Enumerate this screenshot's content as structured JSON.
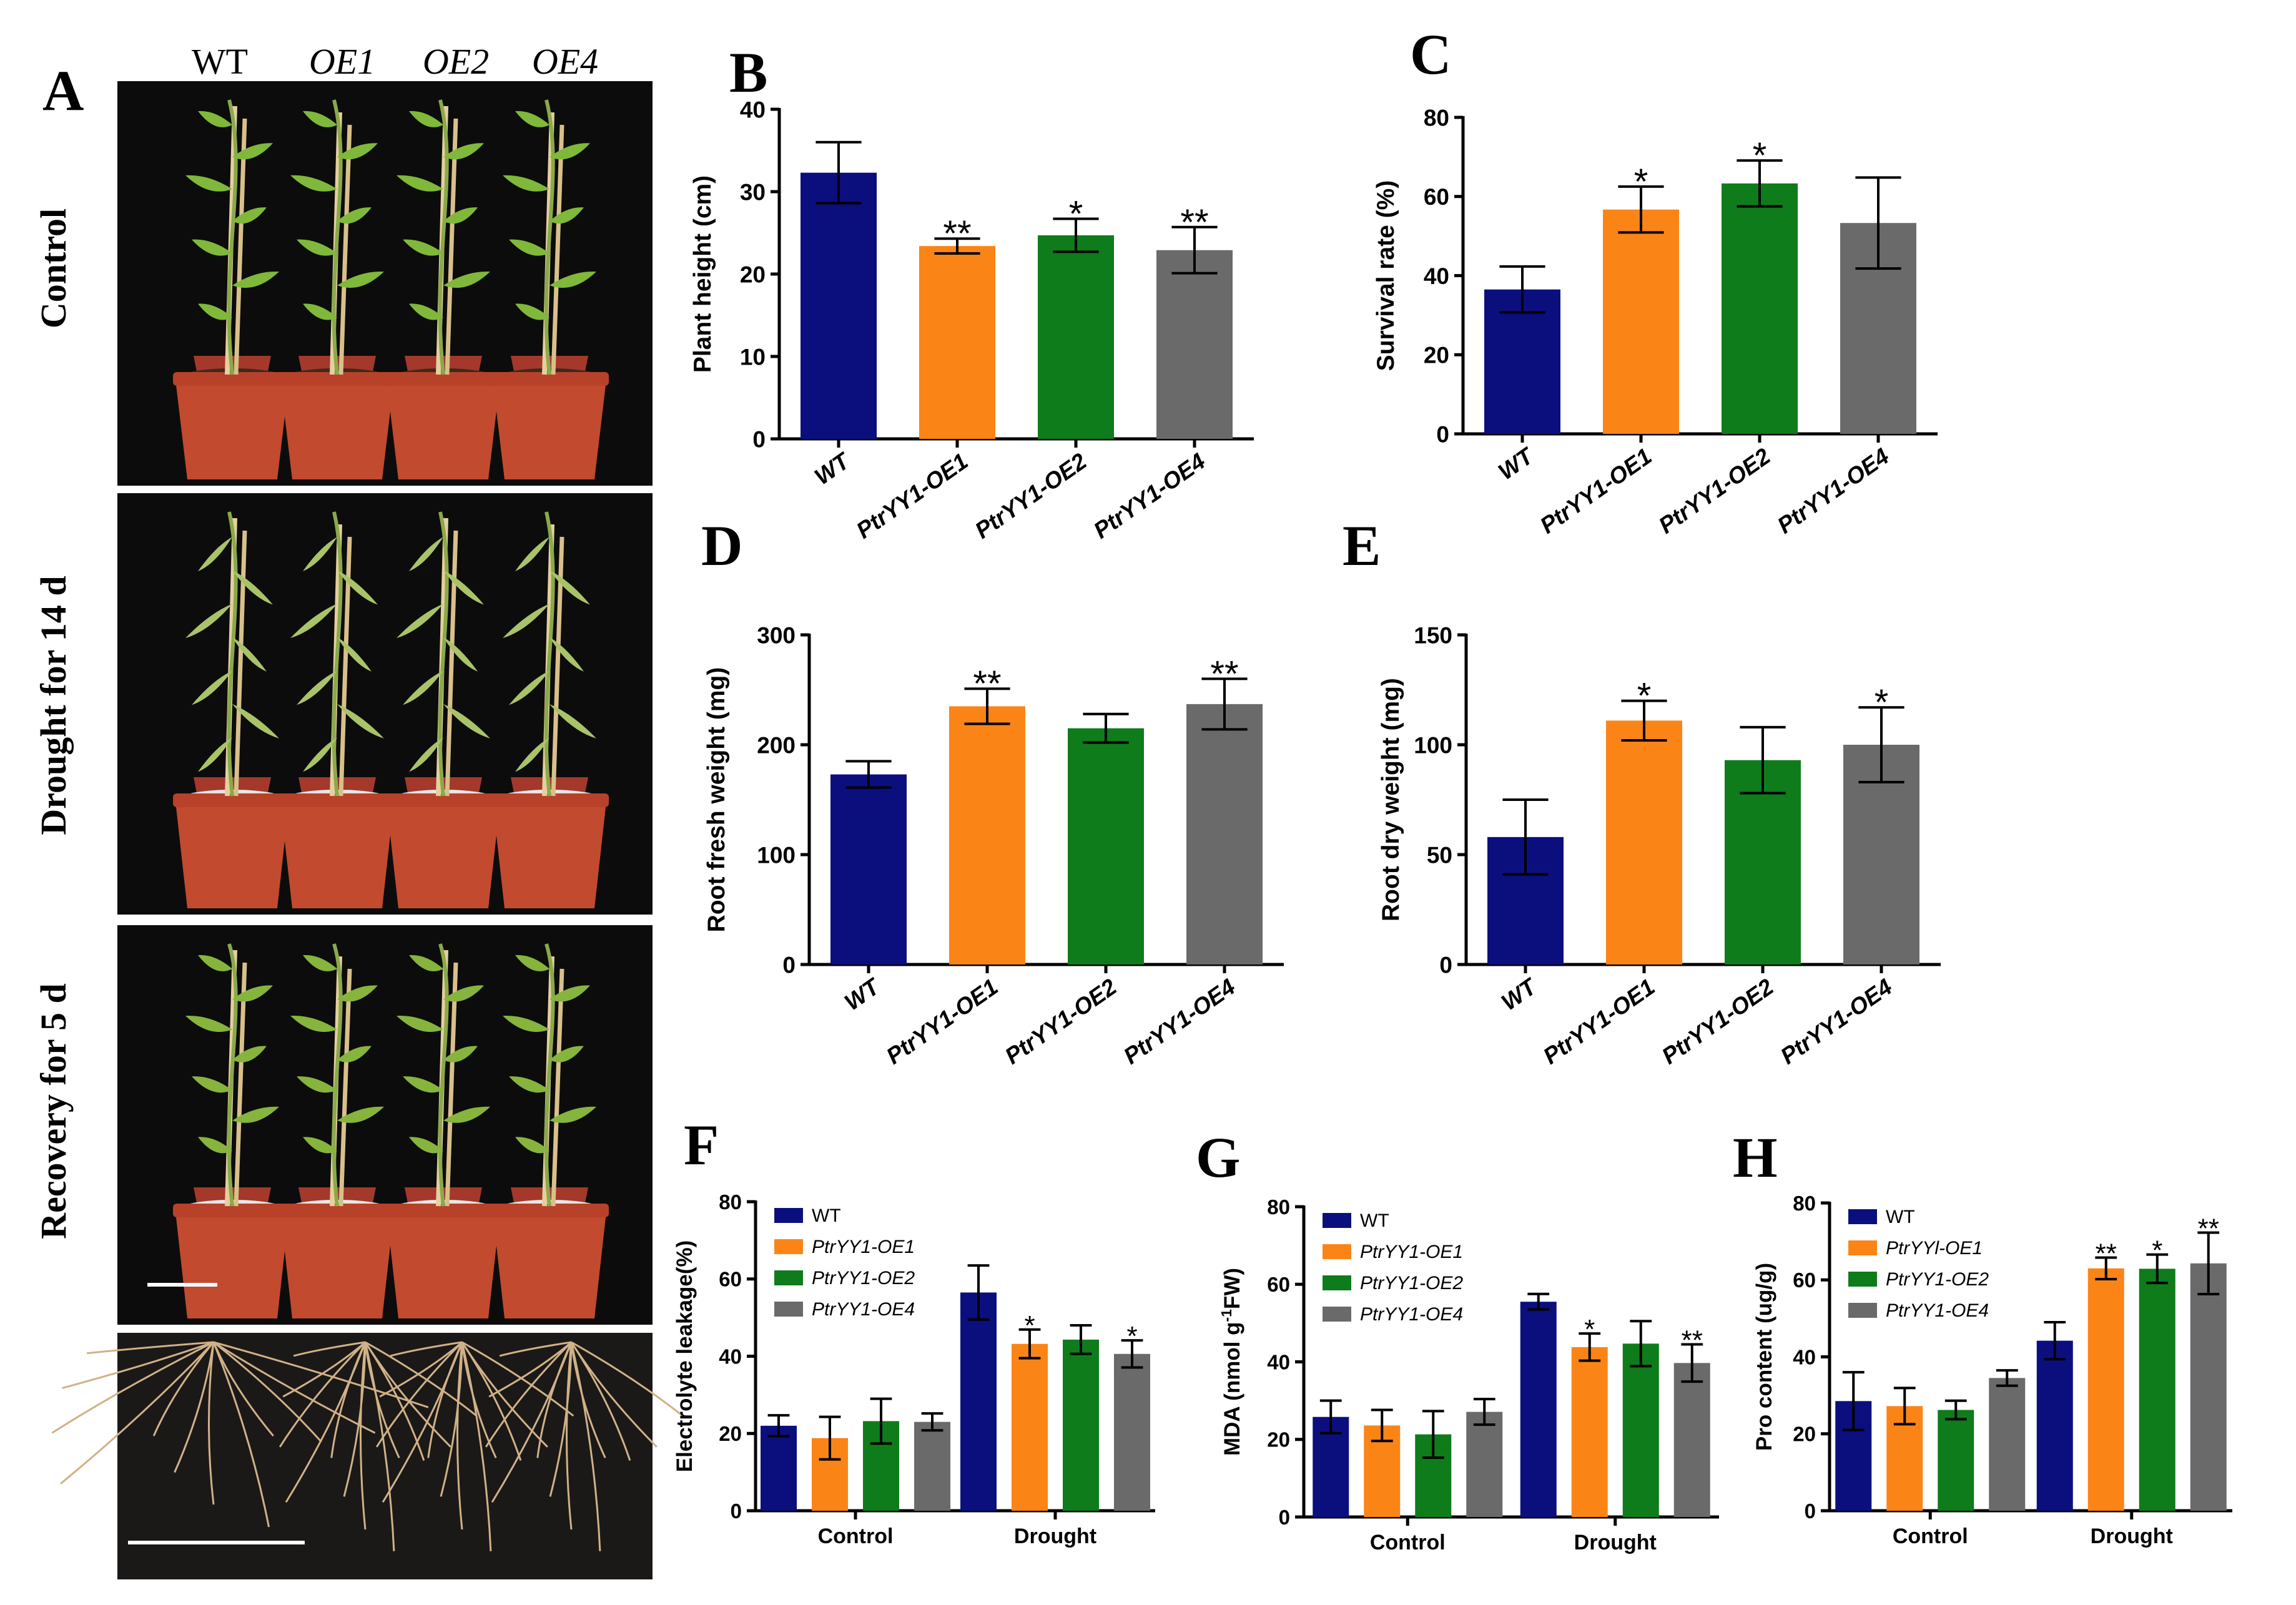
{
  "figure": {
    "panel_labels": [
      "A",
      "B",
      "C",
      "D",
      "E",
      "F",
      "G",
      "H"
    ],
    "photo_columns": [
      "WT",
      "OE1",
      "OE2",
      "OE4"
    ],
    "photo_rows": [
      "Control",
      "Drought for 14 d",
      "Recovery for 5 d"
    ]
  },
  "colors": {
    "WT": "#0b0f7e",
    "OE1": "#fb8417",
    "OE2": "#0e7c1b",
    "OE4": "#6a6a6a"
  },
  "chart_data": [
    {
      "panel": "B",
      "type": "bar",
      "title": "",
      "xlabel": "",
      "ylabel": "Plant height (cm)",
      "categories": [
        "WT",
        "PtrYY1-OE1",
        "PtrYY1-OE2",
        "PtrYY1-OE4"
      ],
      "values": [
        32.3,
        23.4,
        24.7,
        22.9
      ],
      "errors": [
        3.7,
        0.9,
        2.0,
        2.8
      ],
      "annotations": [
        "",
        "**",
        "*",
        "**"
      ],
      "ylim": [
        0,
        40
      ],
      "yticks": [
        0,
        10,
        20,
        30,
        40
      ],
      "grid": false
    },
    {
      "panel": "C",
      "type": "bar",
      "title": "",
      "xlabel": "",
      "ylabel": "Survival rate (%)",
      "categories": [
        "WT",
        "PtrYY1-OE1",
        "PtrYY1-OE2",
        "PtrYY1-OE4"
      ],
      "values": [
        36.5,
        56.7,
        63.3,
        53.3
      ],
      "errors": [
        5.8,
        5.8,
        5.8,
        11.5
      ],
      "annotations": [
        "",
        "*",
        "*",
        ""
      ],
      "ylim": [
        0,
        80
      ],
      "yticks": [
        0,
        20,
        40,
        60,
        80
      ],
      "grid": false
    },
    {
      "panel": "D",
      "type": "bar",
      "title": "",
      "xlabel": "",
      "ylabel": "Root fresh weight (mg)",
      "categories": [
        "WT",
        "PtrYY1-OE1",
        "PtrYY1-OE2",
        "PtrYY1-OE4"
      ],
      "values": [
        173,
        235,
        215,
        237
      ],
      "errors": [
        12,
        16,
        13,
        23
      ],
      "annotations": [
        "",
        "**",
        "",
        "**"
      ],
      "ylim": [
        0,
        300
      ],
      "yticks": [
        0,
        100,
        200,
        300
      ],
      "grid": false
    },
    {
      "panel": "E",
      "type": "bar",
      "title": "",
      "xlabel": "",
      "ylabel": "Root dry weight (mg)",
      "categories": [
        "WT",
        "PtrYY1-OE1",
        "PtrYY1-OE2",
        "PtrYY1-OE4"
      ],
      "values": [
        58,
        111,
        93,
        100
      ],
      "errors": [
        17,
        9,
        15,
        17
      ],
      "annotations": [
        "",
        "*",
        "",
        "*"
      ],
      "ylim": [
        0,
        150
      ],
      "yticks": [
        0,
        50,
        100,
        150
      ],
      "grid": false
    },
    {
      "panel": "F",
      "type": "bar",
      "title": "",
      "xlabel": "",
      "ylabel": "Electrolyte leakage(%)",
      "categories": [
        "Control",
        "Drought"
      ],
      "series": [
        {
          "name": "WT",
          "values": [
            22,
            56.5
          ],
          "errors": [
            2.7,
            7
          ]
        },
        {
          "name": "PtrYY1-OE1",
          "values": [
            18.8,
            43.2
          ],
          "errors": [
            5.5,
            3.7
          ]
        },
        {
          "name": "PtrYY1-OE2",
          "values": [
            23.2,
            44.3
          ],
          "errors": [
            5.8,
            3.7
          ]
        },
        {
          "name": "PtrYY1-OE4",
          "values": [
            23,
            40.6
          ],
          "errors": [
            2.2,
            3.5
          ]
        }
      ],
      "annotations": [
        [
          "",
          "",
          "",
          ""
        ],
        [
          "",
          "*",
          "",
          "*"
        ]
      ],
      "legend_position": "top-left",
      "ylim": [
        0,
        80
      ],
      "yticks": [
        0,
        20,
        40,
        60,
        80
      ],
      "grid": false
    },
    {
      "panel": "G",
      "type": "bar",
      "title": "",
      "xlabel": "",
      "ylabel": "MDA (nmol g",
      "ylabel_superscript": "-1",
      "ylabel_suffix": "FW)",
      "categories": [
        "Control",
        "Drought"
      ],
      "series": [
        {
          "name": "WT",
          "values": [
            25.8,
            55.5
          ],
          "errors": [
            4.2,
            2
          ]
        },
        {
          "name": "PtrYY1-OE1",
          "values": [
            23.6,
            43.8
          ],
          "errors": [
            4,
            3.5
          ]
        },
        {
          "name": "PtrYY1-OE2",
          "values": [
            21.3,
            44.7
          ],
          "errors": [
            6,
            5.8
          ]
        },
        {
          "name": "PtrYY1-OE4",
          "values": [
            27.1,
            39.7
          ],
          "errors": [
            3.3,
            4.8
          ]
        }
      ],
      "annotations": [
        [
          "",
          "",
          "",
          ""
        ],
        [
          "",
          "*",
          "",
          "**"
        ]
      ],
      "legend_position": "top-left",
      "ylim": [
        0,
        80
      ],
      "yticks": [
        0,
        20,
        40,
        60,
        80
      ],
      "grid": false
    },
    {
      "panel": "H",
      "type": "bar",
      "title": "",
      "xlabel": "",
      "ylabel": "Pro content (ug/g)",
      "categories": [
        "Control",
        "Drought"
      ],
      "series": [
        {
          "name": "WT",
          "values": [
            28.5,
            44.2
          ],
          "errors": [
            7.5,
            4.8
          ]
        },
        {
          "name": "PtrYYl-OE1",
          "values": [
            27.2,
            63
          ],
          "errors": [
            4.7,
            2.8
          ]
        },
        {
          "name": "PtrYY1-OE2",
          "values": [
            26.2,
            62.9
          ],
          "errors": [
            2.4,
            3.7
          ]
        },
        {
          "name": "PtrYY1-OE4",
          "values": [
            34.5,
            64.3
          ],
          "errors": [
            2,
            8
          ]
        }
      ],
      "annotations": [
        [
          "",
          "",
          "",
          ""
        ],
        [
          "",
          "**",
          "*",
          "**"
        ]
      ],
      "legend_position": "top-left",
      "ylim": [
        0,
        80
      ],
      "yticks": [
        0,
        20,
        40,
        60,
        80
      ],
      "grid": false
    }
  ]
}
